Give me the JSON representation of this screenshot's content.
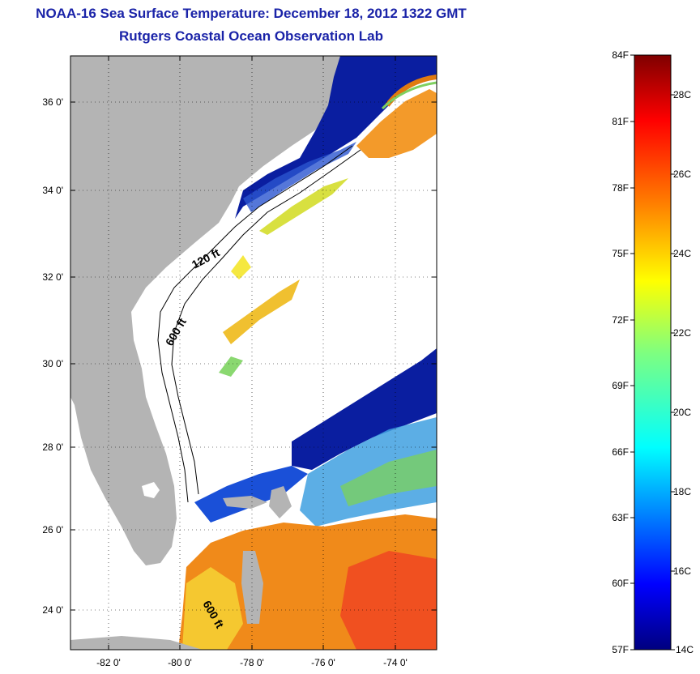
{
  "title": "NOAA-16 Sea Surface Temperature:  December 18, 2012 1322 GMT",
  "subtitle": "Rutgers Coastal Ocean Observation Lab",
  "lat_labels": [
    "36 0'",
    "34 0'",
    "32 0'",
    "30 0'",
    "28 0'",
    "26 0'",
    "24 0'"
  ],
  "lon_labels": [
    "-82 0'",
    "-80 0'",
    "-78 0'",
    "-76 0'",
    "-74 0'"
  ],
  "contour_labels": [
    "120 ft",
    "600 ft",
    "600 ft"
  ],
  "colorbar": {
    "fahrenheit": [
      "84F",
      "81F",
      "78F",
      "75F",
      "72F",
      "69F",
      "66F",
      "63F",
      "60F",
      "57F"
    ],
    "celsius": [
      "28C",
      "26C",
      "24C",
      "22C",
      "20C",
      "18C",
      "16C",
      "14C"
    ],
    "colors": [
      "#00007f",
      "#0000ff",
      "#007fff",
      "#00ffff",
      "#7fff7f",
      "#ffff00",
      "#ff7f00",
      "#ff0000",
      "#7f0000"
    ]
  },
  "colors": {
    "land": "#b4b4b4",
    "title": "#1a23a8",
    "cold": "#0a1ea0",
    "warm": "#f08a1a"
  }
}
